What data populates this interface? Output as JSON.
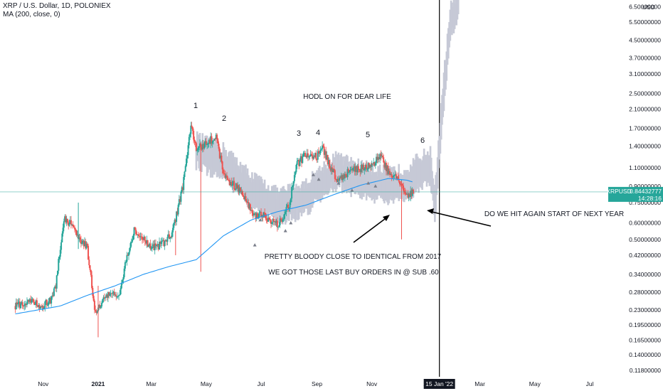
{
  "legend": {
    "title": "XRP / U.S. Dollar, 1D, POLONIEX",
    "indicator": "MA (200, close, 0)"
  },
  "price_axis": {
    "currency": "USD",
    "ticks": [
      "6.50000000",
      "5.50000000",
      "4.50000000",
      "3.70000000",
      "3.10000000",
      "2.50000000",
      "2.10000000",
      "1.70000000",
      "1.40000000",
      "1.10000000",
      "0.90000000",
      "0.75000000",
      "0.60000000",
      "0.50000000",
      "0.42000000",
      "0.34000000",
      "0.28000000",
      "0.23000000",
      "0.19500000",
      "0.16500000",
      "0.14000000",
      "0.11800000"
    ],
    "symbol_tag": "XRPUSD",
    "last_price": "0.84432777",
    "countdown": "14:28:16"
  },
  "time_axis": {
    "ticks": [
      "Nov",
      "2021",
      "Mar",
      "May",
      "Jul",
      "Sep",
      "Nov",
      "20",
      "Mar",
      "May",
      "Jul"
    ],
    "crosshair_label": "15 Jan '22"
  },
  "annotations": {
    "wave_labels": [
      "1",
      "2",
      "3",
      "4",
      "5",
      "6"
    ],
    "hodl": "HODL ON FOR DEAR LIFE",
    "identical": "PRETTY BLOODY CLOSE TO IDENTICAL FROM 2017",
    "buy_orders": "WE GOT THOSE LAST BUY ORDERS IN @ SUB .60",
    "hit_again": "DO WE HIT AGAIN START OF NEXT YEAR"
  },
  "colors": {
    "up": "#26a69a",
    "down": "#ef5350",
    "ma": "#2196f3",
    "ghost": "#c6c9d6",
    "price_line": "#26a69a",
    "text": "#131722"
  },
  "chart_data": {
    "type": "candlestick",
    "title": "XRP / U.S. Dollar, 1D, POLONIEX",
    "scale": "log",
    "ylim": [
      0.11,
      7.0
    ],
    "series": [
      {
        "name": "XRPUSD",
        "points": [
          [
            "2020-10-01",
            0.24
          ],
          [
            "2020-10-20",
            0.25
          ],
          [
            "2020-11-01",
            0.24
          ],
          [
            "2020-11-10",
            0.26
          ],
          [
            "2020-11-15",
            0.3
          ],
          [
            "2020-11-22",
            0.55
          ],
          [
            "2020-11-25",
            0.62
          ],
          [
            "2020-12-01",
            0.6
          ],
          [
            "2020-12-10",
            0.52
          ],
          [
            "2020-12-20",
            0.45
          ],
          [
            "2020-12-29",
            0.22
          ],
          [
            "2021-01-05",
            0.25
          ],
          [
            "2021-01-15",
            0.28
          ],
          [
            "2021-01-25",
            0.27
          ],
          [
            "2021-02-01",
            0.4
          ],
          [
            "2021-02-10",
            0.55
          ],
          [
            "2021-02-20",
            0.5
          ],
          [
            "2021-03-01",
            0.45
          ],
          [
            "2021-03-15",
            0.48
          ],
          [
            "2021-03-25",
            0.55
          ],
          [
            "2021-04-05",
            0.9
          ],
          [
            "2021-04-14",
            1.75
          ],
          [
            "2021-04-20",
            1.35
          ],
          [
            "2021-05-01",
            1.45
          ],
          [
            "2021-05-12",
            1.55
          ],
          [
            "2021-05-20",
            1.05
          ],
          [
            "2021-05-25",
            0.95
          ],
          [
            "2021-06-10",
            0.85
          ],
          [
            "2021-06-22",
            0.65
          ],
          [
            "2021-07-01",
            0.66
          ],
          [
            "2021-07-20",
            0.58
          ],
          [
            "2021-08-01",
            0.74
          ],
          [
            "2021-08-10",
            1.15
          ],
          [
            "2021-08-20",
            1.28
          ],
          [
            "2021-09-01",
            1.25
          ],
          [
            "2021-09-07",
            1.4
          ],
          [
            "2021-09-15",
            1.12
          ],
          [
            "2021-09-25",
            0.95
          ],
          [
            "2021-10-05",
            1.05
          ],
          [
            "2021-10-20",
            1.1
          ],
          [
            "2021-11-01",
            1.12
          ],
          [
            "2021-11-10",
            1.25
          ],
          [
            "2021-11-20",
            1.05
          ],
          [
            "2021-12-01",
            0.98
          ],
          [
            "2021-12-10",
            0.8
          ],
          [
            "2021-12-17",
            0.84
          ]
        ]
      },
      {
        "name": "MA (200, close, 0)",
        "points": [
          [
            "2020-10-01",
            0.22
          ],
          [
            "2020-11-20",
            0.24
          ],
          [
            "2020-12-20",
            0.27
          ],
          [
            "2021-01-20",
            0.3
          ],
          [
            "2021-02-20",
            0.34
          ],
          [
            "2021-03-20",
            0.37
          ],
          [
            "2021-04-20",
            0.4
          ],
          [
            "2021-05-20",
            0.52
          ],
          [
            "2021-06-20",
            0.62
          ],
          [
            "2021-07-20",
            0.68
          ],
          [
            "2021-08-20",
            0.73
          ],
          [
            "2021-09-20",
            0.82
          ],
          [
            "2021-10-20",
            0.91
          ],
          [
            "2021-11-20",
            0.98
          ],
          [
            "2021-12-10",
            0.96
          ],
          [
            "2021-12-17",
            0.94
          ]
        ]
      },
      {
        "name": "2017 fractal overlay",
        "points": [
          [
            "2021-04-20",
            1.3
          ],
          [
            "2021-05-20",
            1.15
          ],
          [
            "2021-06-20",
            0.85
          ],
          [
            "2021-07-20",
            0.7
          ],
          [
            "2021-08-20",
            0.78
          ],
          [
            "2021-09-20",
            1.05
          ],
          [
            "2021-10-20",
            0.95
          ],
          [
            "2021-11-20",
            0.88
          ],
          [
            "2021-12-10",
            0.92
          ],
          [
            "2021-12-25",
            1.05
          ],
          [
            "2022-01-05",
            1.1
          ],
          [
            "2022-01-10",
            0.72
          ],
          [
            "2022-01-15",
            1.4
          ],
          [
            "2022-01-22",
            3.2
          ],
          [
            "2022-01-28",
            5.5
          ],
          [
            "2022-02-05",
            6.8
          ]
        ]
      }
    ]
  }
}
